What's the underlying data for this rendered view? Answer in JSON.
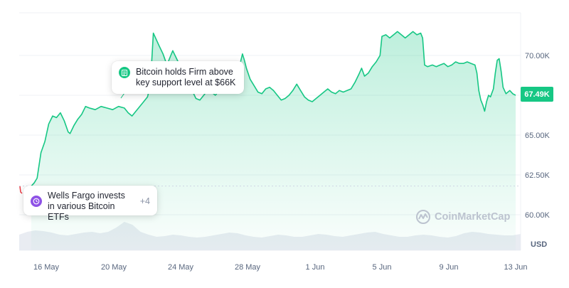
{
  "chart_data": {
    "type": "area",
    "title": "",
    "xlabel": "",
    "ylabel": "",
    "currency": "USD",
    "current_price_label": "67.49K",
    "current_price": 67490,
    "baseline": 61800,
    "ylim": [
      59000,
      73000
    ],
    "y_ticks": [
      {
        "value": 70000,
        "label": "70.00K"
      },
      {
        "value": 67500,
        "label": "67.50K"
      },
      {
        "value": 65000,
        "label": "65.00K"
      },
      {
        "value": 62500,
        "label": "62.50K"
      },
      {
        "value": 60000,
        "label": "60.00K"
      }
    ],
    "x_ticks": [
      "16 May",
      "20 May",
      "24 May",
      "28 May",
      "1 Jun",
      "5 Jun",
      "9 Jun",
      "13 Jun"
    ],
    "x_range_days": [
      15.6,
      13.7
    ],
    "series": [
      {
        "points": [
          [
            0.0,
            61800
          ],
          [
            0.15,
            62000
          ],
          [
            0.3,
            62300
          ],
          [
            0.5,
            63900
          ],
          [
            0.7,
            64600
          ],
          [
            0.9,
            65700
          ],
          [
            1.1,
            66200
          ],
          [
            1.3,
            66100
          ],
          [
            1.5,
            66400
          ],
          [
            1.7,
            65900
          ],
          [
            1.9,
            65200
          ],
          [
            2.0,
            65100
          ],
          [
            2.2,
            65600
          ],
          [
            2.4,
            66000
          ],
          [
            2.6,
            66300
          ],
          [
            2.8,
            66800
          ],
          [
            3.0,
            66700
          ],
          [
            3.3,
            66600
          ],
          [
            3.6,
            66800
          ],
          [
            3.9,
            66700
          ],
          [
            4.2,
            66600
          ],
          [
            4.5,
            66800
          ],
          [
            4.8,
            66700
          ],
          [
            5.0,
            66400
          ],
          [
            5.2,
            66200
          ],
          [
            5.4,
            66500
          ],
          [
            5.6,
            66800
          ],
          [
            5.8,
            67100
          ],
          [
            6.0,
            67400
          ],
          [
            6.1,
            67900
          ],
          [
            6.2,
            69300
          ],
          [
            6.3,
            71400
          ],
          [
            6.45,
            71000
          ],
          [
            6.6,
            70600
          ],
          [
            6.8,
            70100
          ],
          [
            7.0,
            69400
          ],
          [
            7.2,
            70000
          ],
          [
            7.3,
            70300
          ],
          [
            7.5,
            69800
          ],
          [
            7.7,
            69300
          ],
          [
            7.9,
            68900
          ],
          [
            8.1,
            68300
          ],
          [
            8.3,
            67800
          ],
          [
            8.5,
            67300
          ],
          [
            8.7,
            67200
          ],
          [
            8.9,
            67500
          ],
          [
            9.1,
            67800
          ],
          [
            9.3,
            67700
          ],
          [
            9.5,
            67500
          ],
          [
            9.7,
            67800
          ],
          [
            9.9,
            68000
          ],
          [
            10.1,
            67900
          ],
          [
            10.3,
            68000
          ],
          [
            10.5,
            68200
          ],
          [
            10.7,
            68600
          ],
          [
            10.8,
            69600
          ],
          [
            10.9,
            70100
          ],
          [
            11.0,
            69700
          ],
          [
            11.1,
            69200
          ],
          [
            11.3,
            68500
          ],
          [
            11.5,
            68100
          ],
          [
            11.7,
            67700
          ],
          [
            11.9,
            67600
          ],
          [
            12.1,
            67900
          ],
          [
            12.3,
            68000
          ],
          [
            12.5,
            67800
          ],
          [
            12.7,
            67500
          ],
          [
            12.9,
            67200
          ],
          [
            13.1,
            67300
          ],
          [
            13.3,
            67500
          ],
          [
            13.5,
            67800
          ],
          [
            13.7,
            68200
          ],
          [
            13.9,
            67800
          ],
          [
            14.1,
            67400
          ],
          [
            14.3,
            67200
          ],
          [
            14.5,
            67100
          ],
          [
            14.7,
            67300
          ],
          [
            14.9,
            67500
          ],
          [
            15.1,
            67700
          ],
          [
            15.3,
            67900
          ],
          [
            15.5,
            67700
          ],
          [
            15.7,
            67600
          ],
          [
            15.9,
            67800
          ],
          [
            16.1,
            67700
          ],
          [
            16.3,
            67800
          ],
          [
            16.5,
            67900
          ],
          [
            16.7,
            68300
          ],
          [
            16.9,
            68800
          ],
          [
            17.05,
            69200
          ],
          [
            17.2,
            68700
          ],
          [
            17.4,
            68900
          ],
          [
            17.6,
            69300
          ],
          [
            17.8,
            69600
          ],
          [
            18.0,
            70000
          ],
          [
            18.1,
            71200
          ],
          [
            18.3,
            71300
          ],
          [
            18.5,
            71100
          ],
          [
            18.7,
            71300
          ],
          [
            18.9,
            71500
          ],
          [
            19.1,
            71300
          ],
          [
            19.3,
            71100
          ],
          [
            19.5,
            71300
          ],
          [
            19.7,
            71500
          ],
          [
            19.9,
            71300
          ],
          [
            20.1,
            71400
          ],
          [
            20.2,
            71100
          ],
          [
            20.3,
            69400
          ],
          [
            20.45,
            69300
          ],
          [
            20.7,
            69400
          ],
          [
            20.9,
            69300
          ],
          [
            21.1,
            69400
          ],
          [
            21.3,
            69500
          ],
          [
            21.5,
            69300
          ],
          [
            21.7,
            69400
          ],
          [
            21.9,
            69600
          ],
          [
            22.1,
            69500
          ],
          [
            22.3,
            69500
          ],
          [
            22.5,
            69600
          ],
          [
            22.7,
            69500
          ],
          [
            22.9,
            69400
          ],
          [
            23.0,
            68900
          ],
          [
            23.1,
            67800
          ],
          [
            23.2,
            67200
          ],
          [
            23.3,
            66900
          ],
          [
            23.4,
            66500
          ],
          [
            23.5,
            67100
          ],
          [
            23.6,
            67500
          ],
          [
            23.7,
            67400
          ],
          [
            23.85,
            67900
          ],
          [
            23.95,
            68900
          ],
          [
            24.05,
            69700
          ],
          [
            24.15,
            69800
          ],
          [
            24.25,
            69000
          ],
          [
            24.35,
            68000
          ],
          [
            24.5,
            67600
          ],
          [
            24.7,
            67800
          ],
          [
            24.85,
            67600
          ],
          [
            25.0,
            67500
          ]
        ]
      }
    ]
  },
  "callouts": {
    "top": {
      "text": "Bitcoin holds Firm above key support level at $66K",
      "icon": "document-icon"
    },
    "bottom": {
      "text": "Wells Fargo invests in various Bitcoin ETFs",
      "more": "+4",
      "icon": "clock-icon"
    }
  },
  "watermark": "CoinMarketCap",
  "colors": {
    "line": "#16c784",
    "area_top": "#16c784",
    "baseline_dots": "#cfd6e4",
    "badge": "#16c784",
    "start_marker": "#ea3943",
    "icon_document": "#16c784",
    "icon_clock": "#8e52e6"
  }
}
